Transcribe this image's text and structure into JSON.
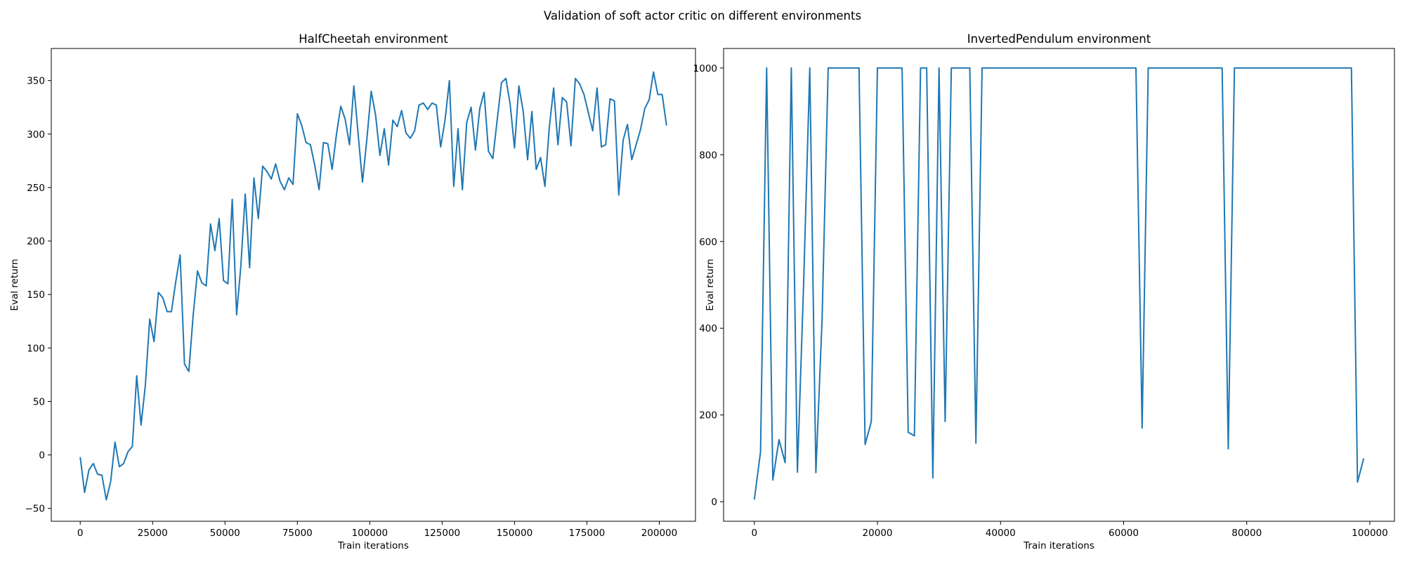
{
  "figure": {
    "suptitle": "Validation of soft actor critic on different environments"
  },
  "chart_data": [
    {
      "type": "line",
      "title": "HalfCheetah environment",
      "xlabel": "Train iterations",
      "ylabel": "Eval return",
      "xlim": [
        -10000,
        212500
      ],
      "ylim": [
        -62,
        380
      ],
      "xticks": [
        0,
        25000,
        50000,
        75000,
        100000,
        125000,
        150000,
        175000,
        200000
      ],
      "yticks": [
        -50,
        0,
        50,
        100,
        150,
        200,
        250,
        300,
        350
      ],
      "grid": false,
      "color": "#1f77b4",
      "x": [
        0,
        1500,
        3000,
        4500,
        6000,
        7500,
        9000,
        10500,
        12000,
        13500,
        15000,
        16500,
        18000,
        19500,
        21000,
        22500,
        24000,
        25500,
        27000,
        28500,
        30000,
        31500,
        33000,
        34500,
        36000,
        37500,
        39000,
        40500,
        42000,
        43500,
        45000,
        46500,
        48000,
        49500,
        51000,
        52500,
        54000,
        55500,
        57000,
        58500,
        60000,
        61500,
        63000,
        64500,
        66000,
        67500,
        69000,
        70500,
        72000,
        73500,
        75000,
        76500,
        78000,
        79500,
        81000,
        82500,
        84000,
        85500,
        87000,
        88500,
        90000,
        91500,
        93000,
        94500,
        96000,
        97500,
        99000,
        100500,
        102000,
        103500,
        105000,
        106500,
        108000,
        109500,
        111000,
        112500,
        114000,
        115500,
        117000,
        118500,
        120000,
        121500,
        123000,
        124500,
        126000,
        127500,
        129000,
        130500,
        132000,
        133500,
        135000,
        136500,
        138000,
        139500,
        141000,
        142500,
        144000,
        145500,
        147000,
        148500,
        150000,
        151500,
        153000,
        154500,
        156000,
        157500,
        159000,
        160500,
        162000,
        163500,
        165000,
        166500,
        168000,
        169500,
        171000,
        172500,
        174000,
        175500,
        177000,
        178500,
        180000,
        181500,
        183000,
        184500,
        186000,
        187500,
        189000,
        190500,
        192000,
        193500,
        195000,
        196500,
        198000,
        199500,
        201000,
        202500
      ],
      "y": [
        -2,
        -35,
        -14,
        -8,
        -18,
        -19,
        -42,
        -25,
        12,
        -11,
        -8,
        3,
        8,
        74,
        28,
        65,
        127,
        106,
        152,
        147,
        134,
        134,
        162,
        187,
        85,
        78,
        130,
        172,
        161,
        158,
        216,
        191,
        221,
        163,
        160,
        239,
        131,
        177,
        244,
        175,
        259,
        221,
        270,
        265,
        258,
        272,
        256,
        248,
        259,
        253,
        319,
        308,
        292,
        290,
        271,
        248,
        292,
        291,
        267,
        300,
        326,
        314,
        290,
        345,
        299,
        255,
        295,
        340,
        318,
        280,
        305,
        271,
        313,
        307,
        322,
        301,
        296,
        303,
        327,
        329,
        323,
        329,
        327,
        288,
        313,
        350,
        251,
        305,
        248,
        311,
        325,
        285,
        324,
        339,
        284,
        277,
        313,
        348,
        352,
        328,
        287,
        345,
        321,
        276,
        321,
        267,
        278,
        251,
        306,
        343,
        290,
        334,
        330,
        289,
        352,
        347,
        337,
        320,
        303,
        343,
        288,
        290,
        333,
        331,
        243,
        294,
        309,
        276,
        290,
        304,
        324,
        332,
        358,
        337,
        337,
        308
      ]
    },
    {
      "type": "line",
      "title": "InvertedPendulum environment",
      "xlabel": "Train iterations",
      "ylabel": "Eval return",
      "xlim": [
        -5000,
        104000
      ],
      "ylim": [
        -45,
        1045
      ],
      "xticks": [
        0,
        20000,
        40000,
        60000,
        80000,
        100000
      ],
      "yticks": [
        0,
        200,
        400,
        600,
        800,
        1000
      ],
      "grid": false,
      "color": "#1f77b4",
      "x": [
        0,
        1000,
        2000,
        3000,
        4000,
        5000,
        6000,
        7000,
        8000,
        9000,
        10000,
        11000,
        12000,
        13000,
        14000,
        15000,
        16000,
        17000,
        18000,
        19000,
        20000,
        21000,
        22000,
        23000,
        24000,
        25000,
        26000,
        27000,
        28000,
        29000,
        30000,
        31000,
        32000,
        33000,
        34000,
        35000,
        36000,
        37000,
        62000,
        63000,
        64000,
        65000,
        76000,
        77000,
        78000,
        79000,
        97000,
        98000,
        99000
      ],
      "y": [
        5,
        115,
        1000,
        50,
        143,
        90,
        1000,
        68,
        500,
        1000,
        67,
        420,
        1000,
        1000,
        1000,
        1000,
        1000,
        1000,
        132,
        185,
        1000,
        1000,
        1000,
        1000,
        1000,
        160,
        152,
        1000,
        1000,
        55,
        1000,
        185,
        1000,
        1000,
        1000,
        1000,
        135,
        1000,
        1000,
        170,
        1000,
        1000,
        1000,
        122,
        1000,
        1000,
        1000,
        45,
        100
      ]
    }
  ]
}
